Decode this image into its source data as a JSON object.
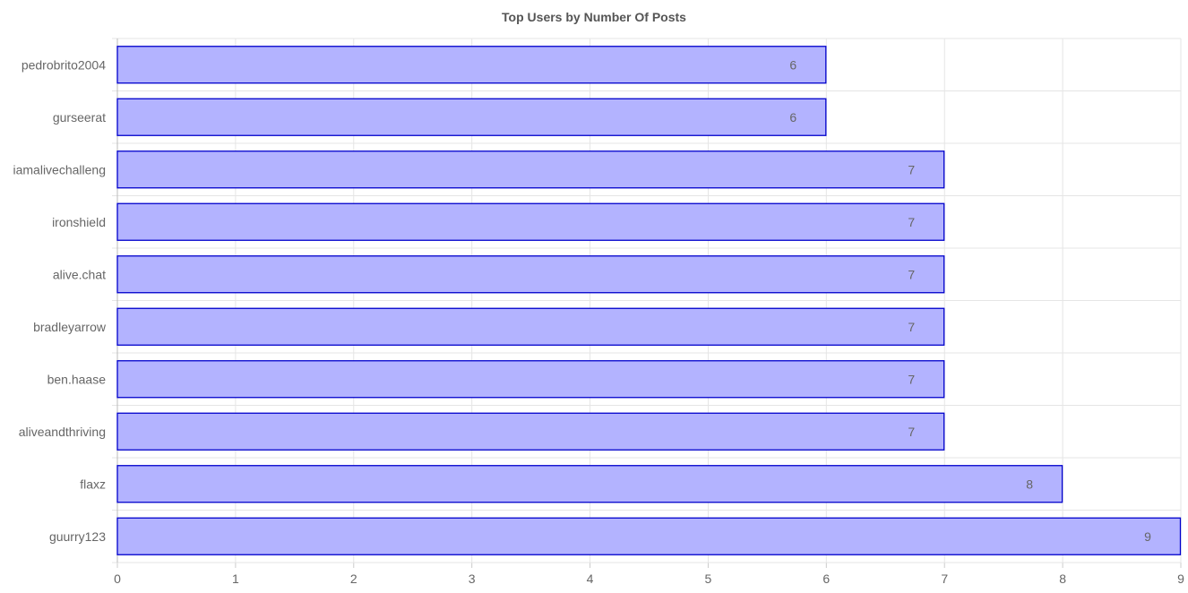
{
  "chart_data": {
    "type": "bar",
    "orientation": "horizontal",
    "title": "Top Users by Number Of Posts",
    "xlabel": "",
    "ylabel": "",
    "categories": [
      "pedrobrito2004",
      "gurseerat",
      "iamalivechalleng",
      "ironshield",
      "alive.chat",
      "bradleyarrow",
      "ben.haase",
      "aliveandthriving",
      "flaxz",
      "guurry123"
    ],
    "values": [
      6,
      6,
      7,
      7,
      7,
      7,
      7,
      7,
      8,
      9
    ],
    "xlim": [
      0,
      9
    ],
    "x_ticks": [
      "0",
      "1",
      "2",
      "3",
      "4",
      "5",
      "6",
      "7",
      "8",
      "9"
    ],
    "grid": true,
    "legend": "none",
    "data_labels": true,
    "colors": {
      "bar_fill": "#b3b3ff",
      "bar_stroke": "#0000cc",
      "grid": "#e5e5e5",
      "text": "#666666"
    }
  }
}
